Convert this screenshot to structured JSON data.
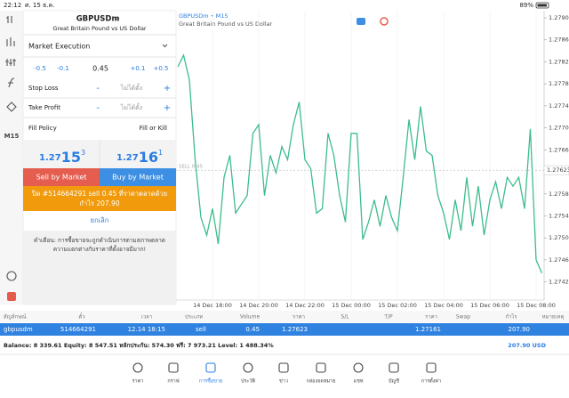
{
  "status_bar": {
    "time": "22:12",
    "date": "ศ. 15 ธ.ค.",
    "battery": "89%"
  },
  "toolbar": {
    "timeframe": "M15"
  },
  "order_panel": {
    "symbol": "GBPUSDm",
    "description": "Great Britain Pound vs US Dollar",
    "execution": "Market Execution",
    "volume": {
      "minus_big": "-0.5",
      "minus_small": "-0.1",
      "value": "0.45",
      "plus_small": "+0.1",
      "plus_big": "+0.5"
    },
    "stop_loss": {
      "label": "Stop Loss",
      "minus": "-",
      "value": "ไม่ได้ตั้ง",
      "plus": "+"
    },
    "take_profit": {
      "label": "Take Profit",
      "minus": "-",
      "value": "ไม่ได้ตั้ง",
      "plus": "+"
    },
    "fill_policy": {
      "label": "Fill Policy",
      "value": "Fill or Kill"
    },
    "sell_price": {
      "prefix": "1.27",
      "big": "15",
      "sup": "3"
    },
    "buy_price": {
      "prefix": "1.27",
      "big": "16",
      "sup": "1"
    },
    "sell_button": "Sell by Market",
    "buy_button": "Buy by Market",
    "close_button": [
      "ปิด #514664291 sell 0.45 ที่ราคาตลาดด้วย",
      "กำไร 207.90"
    ],
    "cancel": "ยกเลิก",
    "warning": [
      "คำเตือน: การซื้อขายจะถูกดำเนินการตามสภาพตลาด",
      "ความแตกต่างกับราคาที่ตั้งอาจมีมาก!"
    ]
  },
  "chart_data": {
    "type": "line",
    "title": "GBPUSDm • M15",
    "subtitle": "Great Britain Pound vs US Dollar",
    "color": "#3dbd8c",
    "grid": true,
    "categories": [
      null,
      null,
      null,
      null,
      null,
      null,
      "14 Dec 18:00",
      null,
      null,
      null,
      null,
      null,
      null,
      null,
      "14 Dec 20:00",
      null,
      null,
      null,
      null,
      null,
      null,
      null,
      "14 Dec 22:00",
      null,
      null,
      null,
      null,
      null,
      null,
      null,
      "15 Dec 00:00",
      null,
      null,
      null,
      null,
      null,
      null,
      null,
      "15 Dec 02:00",
      null,
      null,
      null,
      null,
      null,
      null,
      null,
      "15 Dec 04:00",
      null,
      null,
      null,
      null,
      null,
      null,
      null,
      "15 Dec 06:00",
      null,
      null,
      null,
      null,
      null,
      null,
      null,
      "15 Dec 08:00",
      null
    ],
    "values": [
      1.27811,
      1.27832,
      1.27787,
      1.27642,
      1.27537,
      1.27505,
      1.27553,
      1.27489,
      1.2761,
      1.2765,
      1.27545,
      1.27561,
      1.27577,
      1.2769,
      1.27706,
      1.27577,
      1.2765,
      1.27618,
      1.27666,
      1.27642,
      1.27706,
      1.27747,
      1.27642,
      1.27626,
      1.27545,
      1.27553,
      1.2769,
      1.2765,
      1.27577,
      1.27529,
      1.2769,
      1.2769,
      1.27497,
      1.27529,
      1.27569,
      1.27521,
      1.27577,
      1.27537,
      1.27513,
      1.2761,
      1.27715,
      1.27642,
      1.27739,
      1.27658,
      1.2765,
      1.27577,
      1.27545,
      1.27497,
      1.27569,
      1.27513,
      1.2761,
      1.27521,
      1.27594,
      1.27505,
      1.27569,
      1.27602,
      1.27553,
      1.2761,
      1.27594,
      1.2761,
      1.27553,
      1.27698,
      1.2746,
      1.27436
    ],
    "ylim": [
      1.27387,
      1.27913
    ],
    "yticks": [
      {
        "value": 1.279,
        "label": "1.27900"
      },
      {
        "value": 1.2786,
        "label": "1.27860"
      },
      {
        "value": 1.2782,
        "label": "1.27820"
      },
      {
        "value": 1.2778,
        "label": "1.27780"
      },
      {
        "value": 1.2774,
        "label": "1.27740"
      },
      {
        "value": 1.277,
        "label": "1.27700"
      },
      {
        "value": 1.2766,
        "label": "1.27660"
      },
      {
        "value": 1.2758,
        "label": "1.27580"
      },
      {
        "value": 1.2754,
        "label": "1.27540"
      },
      {
        "value": 1.275,
        "label": "1.27500"
      },
      {
        "value": 1.2746,
        "label": "1.27460"
      },
      {
        "value": 1.2742,
        "label": "1.27420"
      }
    ],
    "order_line": {
      "label": "SELL 0.45",
      "value": 1.27623
    }
  },
  "positions": {
    "headers": [
      "สัญลักษณ์",
      "ตั๋ว",
      "เวลา",
      "ประเภท",
      "Volume",
      "ราคา",
      "S/L",
      "T/P",
      "ราคา",
      "Swap",
      "กำไร",
      "หมายเหตุ"
    ],
    "row": {
      "symbol": "gbpusdm",
      "ticket": "514664291",
      "time": "12.14 18:15",
      "type": "sell",
      "volume": "0.45",
      "open_price": "1.27623",
      "current_price": "1.27161",
      "profit": "207.90"
    }
  },
  "account": {
    "summary": "Balance: 8 339.61 Equity: 8 547.51 หลักประกัน: 574.30 ฟรี: 7 973.21 Level: 1 488.34%",
    "total": "207.90 USD"
  },
  "tab_bar": [
    "ราคา",
    "กราฟ",
    "การซื้อขาย",
    "ประวัติ",
    "ข่าว",
    "กล่องจดหมาย",
    "แชท",
    "บัญชี",
    "การตั้งค่า"
  ]
}
